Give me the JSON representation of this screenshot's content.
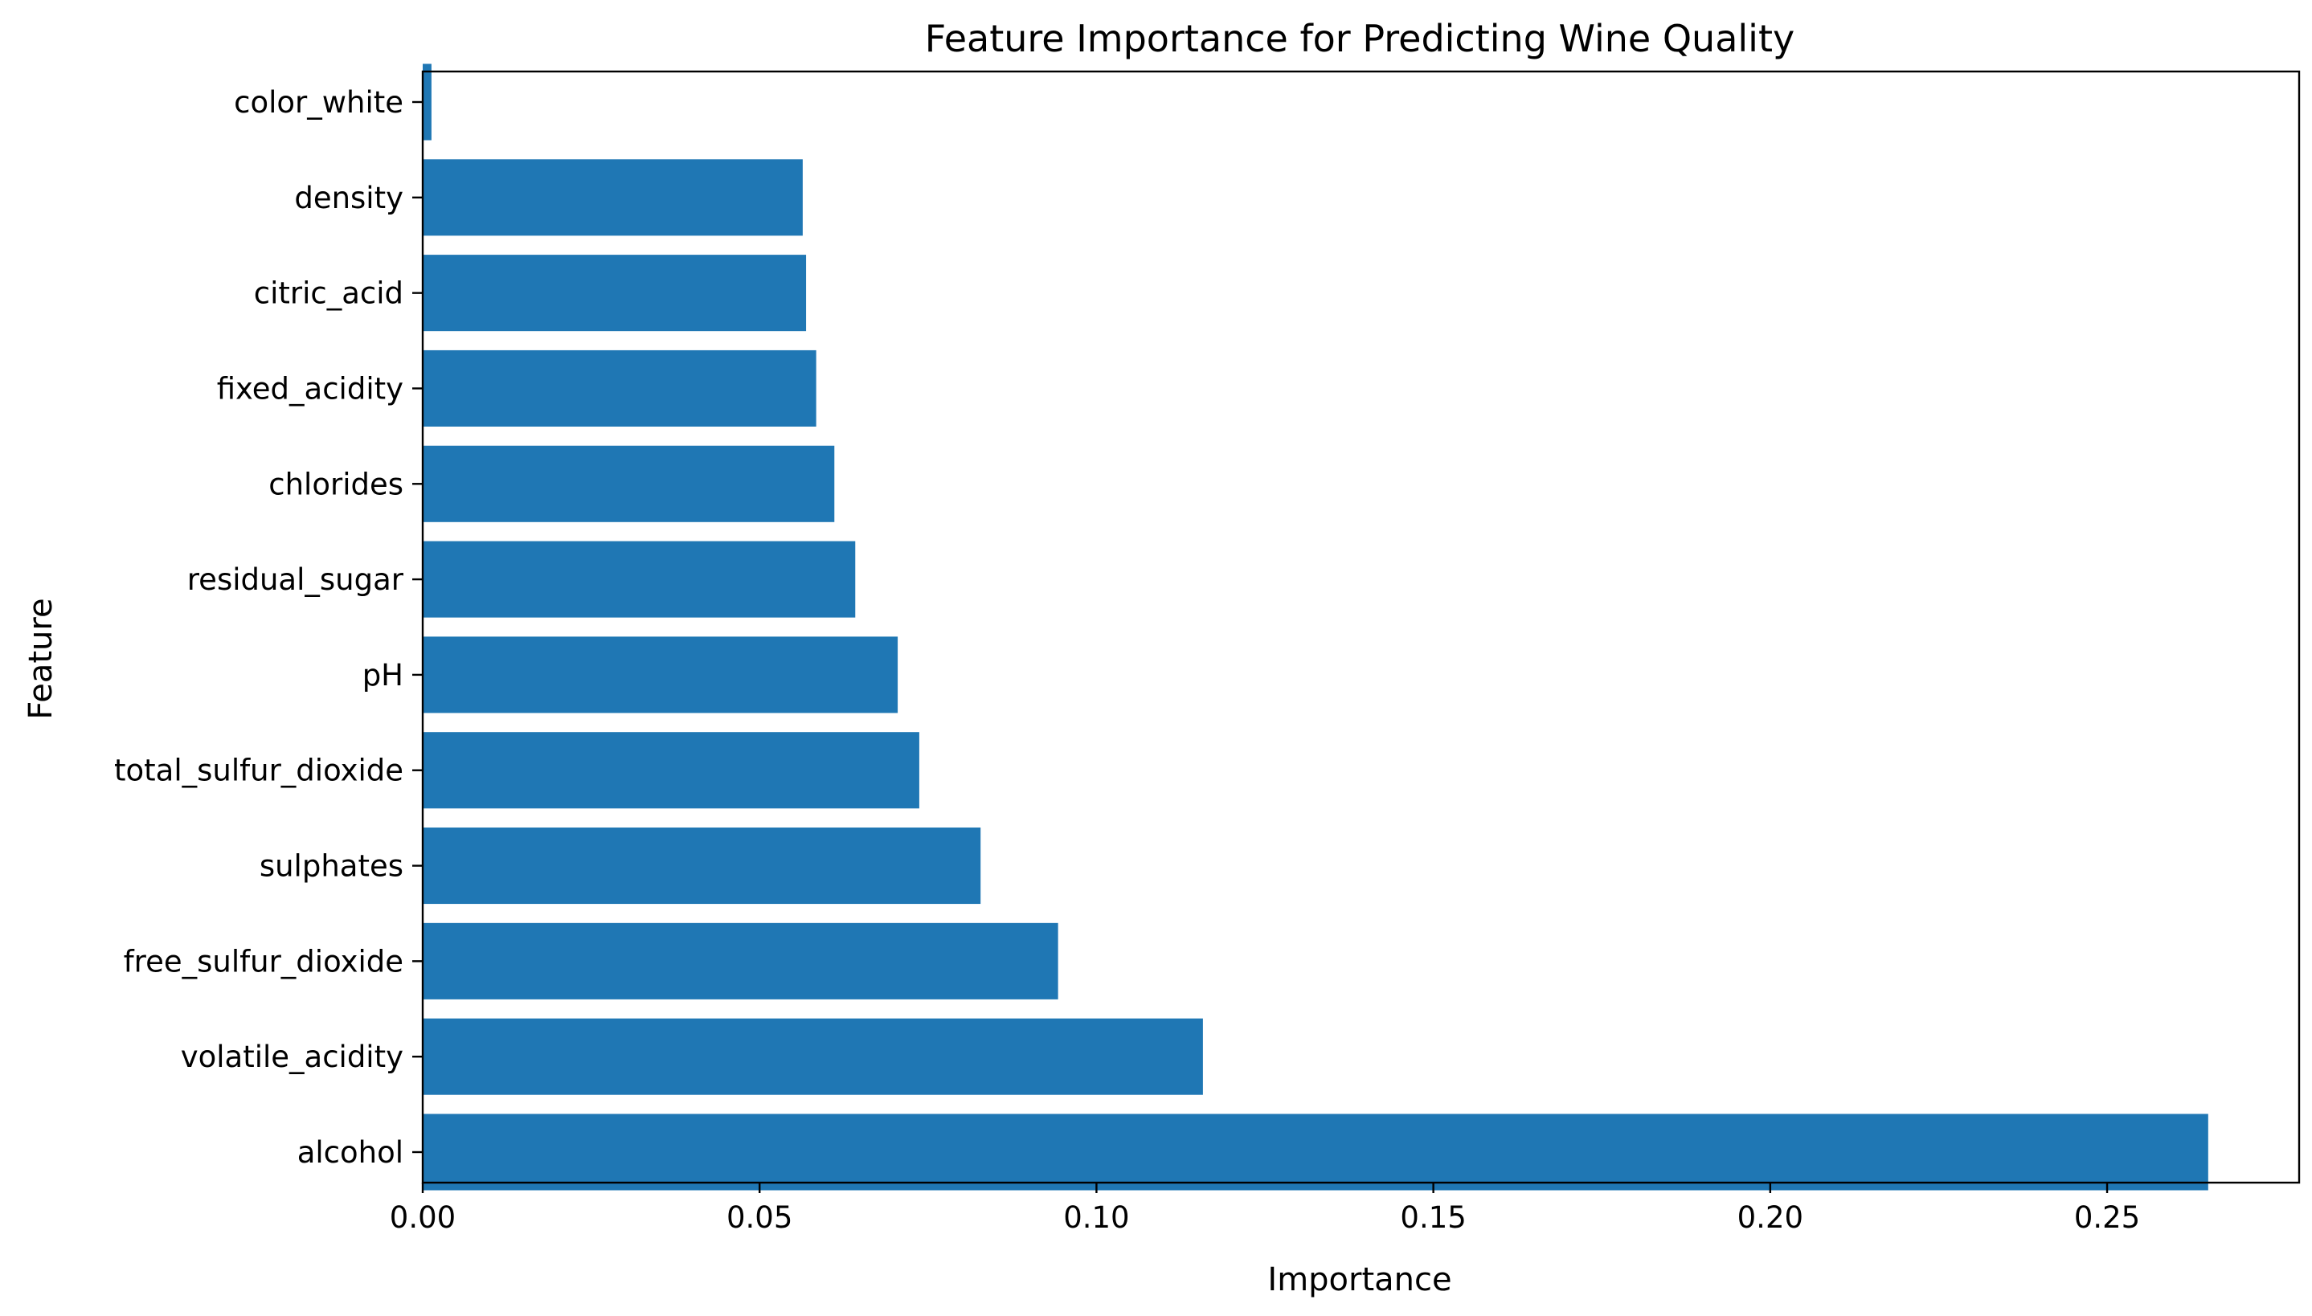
{
  "chart_data": {
    "type": "bar",
    "orientation": "horizontal",
    "title": "Feature Importance for Predicting Wine Quality",
    "xlabel": "Importance",
    "ylabel": "Feature",
    "categories": [
      "alcohol",
      "volatile_acidity",
      "free_sulfur_dioxide",
      "sulphates",
      "total_sulfur_dioxide",
      "pH",
      "residual_sugar",
      "chlorides",
      "fixed_acidity",
      "citric_acid",
      "density",
      "color_white"
    ],
    "values": [
      0.265,
      0.1158,
      0.0943,
      0.0828,
      0.0737,
      0.0705,
      0.0642,
      0.0611,
      0.0584,
      0.0569,
      0.0564,
      0.0013
    ],
    "xlim": [
      0,
      0.2785
    ],
    "xticks": [
      0,
      0.05,
      0.1,
      0.15,
      0.2,
      0.25
    ],
    "xtick_labels": [
      "0.00",
      "0.05",
      "0.10",
      "0.15",
      "0.20",
      "0.25"
    ],
    "bar_color": "#1f77b4",
    "grid": false,
    "legend": "none"
  }
}
